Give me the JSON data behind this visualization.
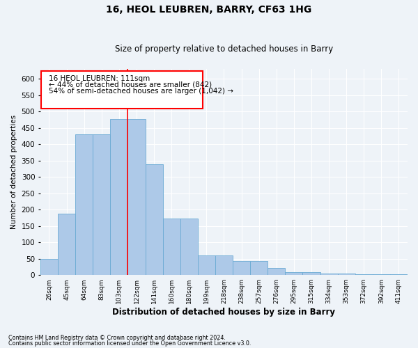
{
  "title": "16, HEOL LEUBREN, BARRY, CF63 1HG",
  "subtitle": "Size of property relative to detached houses in Barry",
  "xlabel": "Distribution of detached houses by size in Barry",
  "ylabel": "Number of detached properties",
  "footnote1": "Contains HM Land Registry data © Crown copyright and database right 2024.",
  "footnote2": "Contains public sector information licensed under the Open Government Licence v3.0.",
  "annotation_line1": "16 HEOL LEUBREN: 111sqm",
  "annotation_line2": "← 44% of detached houses are smaller (842)",
  "annotation_line3": "54% of semi-detached houses are larger (1,042) →",
  "bar_labels": [
    "26sqm",
    "45sqm",
    "64sqm",
    "83sqm",
    "103sqm",
    "122sqm",
    "141sqm",
    "160sqm",
    "180sqm",
    "199sqm",
    "218sqm",
    "238sqm",
    "257sqm",
    "276sqm",
    "295sqm",
    "315sqm",
    "334sqm",
    "353sqm",
    "372sqm",
    "392sqm",
    "411sqm"
  ],
  "bar_values": [
    50,
    188,
    430,
    430,
    476,
    476,
    338,
    172,
    172,
    60,
    60,
    43,
    43,
    22,
    10,
    10,
    5,
    5,
    2,
    2,
    2
  ],
  "bar_color": "#adc9e8",
  "bar_edge_color": "#6aaad4",
  "red_line_index": 5.0,
  "ylim": [
    0,
    630
  ],
  "yticks": [
    0,
    50,
    100,
    150,
    200,
    250,
    300,
    350,
    400,
    450,
    500,
    550,
    600
  ],
  "background_color": "#eef3f8",
  "plot_bg_color": "#eef3f8"
}
